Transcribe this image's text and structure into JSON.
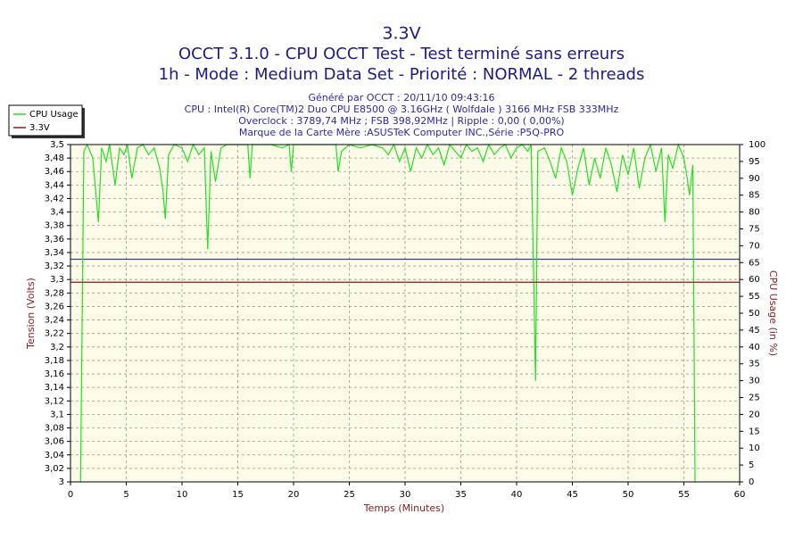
{
  "chart_data": {
    "type": "line",
    "title": "3.3V",
    "subtitle": [
      "OCCT 3.1.0 - CPU OCCT Test - Test terminé sans erreurs",
      "1h - Mode : Medium Data Set - Priorité : NORMAL - 2 threads"
    ],
    "info": [
      "Généré par OCCT : 20/11/10 09:43:16",
      "CPU : Intel(R) Core(TM)2 Duo CPU E8500 @ 3.16GHz ( Wolfdale ) 3166 MHz FSB 333MHz",
      "Overclock : 3789,74 MHz ; FSB 398,92MHz | Ripple : 0,00 ( 0,00%)",
      "Marque de la Carte Mère :ASUSTeK Computer INC.,Série :P5Q-PRO"
    ],
    "xlabel": "Temps (Minutes)",
    "ylabel": "Tension (Volts)",
    "y2label": "CPU Usage (in %)",
    "xlim": [
      0,
      60
    ],
    "xticks": [
      0,
      5,
      10,
      15,
      20,
      25,
      30,
      35,
      40,
      45,
      50,
      55,
      60
    ],
    "ylim": [
      3,
      3.5
    ],
    "yticks": [
      3,
      {
        "value": 3.02,
        "label": "3,02"
      },
      {
        "value": 3.04,
        "label": "3,04"
      },
      {
        "value": 3.06,
        "label": "3,06"
      },
      {
        "value": 3.08,
        "label": "3,08"
      },
      {
        "value": 3.1,
        "label": "3,1"
      },
      {
        "value": 3.12,
        "label": "3,12"
      },
      {
        "value": 3.14,
        "label": "3,14"
      },
      {
        "value": 3.16,
        "label": "3,16"
      },
      {
        "value": 3.18,
        "label": "3,18"
      },
      {
        "value": 3.2,
        "label": "3,2"
      },
      {
        "value": 3.22,
        "label": "3,22"
      },
      {
        "value": 3.24,
        "label": "3,24"
      },
      {
        "value": 3.26,
        "label": "3,26"
      },
      {
        "value": 3.28,
        "label": "3,28"
      },
      {
        "value": 3.3,
        "label": "3,3"
      },
      {
        "value": 3.32,
        "label": "3,32"
      },
      {
        "value": 3.34,
        "label": "3,34"
      },
      {
        "value": 3.36,
        "label": "3,36"
      },
      {
        "value": 3.38,
        "label": "3,38"
      },
      {
        "value": 3.4,
        "label": "3,4"
      },
      {
        "value": 3.42,
        "label": "3,42"
      },
      {
        "value": 3.44,
        "label": "3,44"
      },
      {
        "value": 3.46,
        "label": "3,46"
      },
      {
        "value": 3.48,
        "label": "3,48"
      },
      {
        "value": 3.5,
        "label": "3,5"
      }
    ],
    "y2lim": [
      0,
      100
    ],
    "y2ticks": [
      0,
      5,
      10,
      15,
      20,
      25,
      30,
      35,
      40,
      45,
      50,
      55,
      60,
      65,
      70,
      75,
      80,
      85,
      90,
      95,
      100
    ],
    "grid": true,
    "legend": "top-left",
    "reference_lines": [
      {
        "value": 3.33,
        "color": "#3a3a9a"
      }
    ],
    "series": [
      {
        "name": "CPU Usage",
        "color": "#22e022",
        "axis": "y2",
        "x": [
          0.9,
          1.2,
          1.5,
          2,
          2.5,
          2.8,
          3.2,
          3.5,
          4,
          4.4,
          4.8,
          5.1,
          5.5,
          6,
          6.5,
          7,
          7.5,
          8,
          8.3,
          8.5,
          8.8,
          9.3,
          10,
          10.5,
          11,
          11.5,
          12,
          12.3,
          12.6,
          13,
          13.5,
          14,
          15,
          15.9,
          16.1,
          16.3,
          17,
          18,
          19,
          19.6,
          19.8,
          20,
          21,
          22,
          23,
          23.8,
          24,
          24.3,
          25,
          26,
          27,
          28,
          28.5,
          29,
          29.5,
          30,
          30.5,
          31,
          31.5,
          32,
          32.5,
          33,
          33.5,
          34,
          34.5,
          35,
          35.5,
          36,
          36.5,
          37,
          37.5,
          38,
          38.5,
          39,
          39.5,
          40,
          40.5,
          41,
          41.3,
          41.5,
          41.7,
          41.9,
          42.5,
          43,
          43.5,
          44,
          44.5,
          45,
          45.5,
          46,
          46.5,
          47,
          47.5,
          48,
          48.5,
          49,
          49.5,
          50,
          50.5,
          51,
          51.5,
          52,
          52.5,
          53,
          53.3,
          53.6,
          54,
          54.5,
          55,
          55.3,
          55.5,
          55.8,
          56
        ],
        "values": [
          0,
          98,
          100,
          96,
          77,
          99,
          95,
          100,
          88,
          99,
          97,
          100,
          90,
          99,
          100,
          97,
          99,
          93,
          86,
          78,
          97,
          100,
          99,
          95,
          100,
          97,
          99,
          69,
          98,
          89,
          99,
          100,
          100,
          100,
          90,
          100,
          100,
          100,
          99,
          100,
          92,
          100,
          100,
          100,
          100,
          100,
          92,
          98,
          100,
          99,
          100,
          99,
          97,
          100,
          95,
          99,
          92,
          99,
          96,
          100,
          97,
          99,
          94,
          100,
          98,
          96,
          100,
          98,
          99,
          95,
          100,
          97,
          99,
          100,
          96,
          99,
          100,
          98,
          100,
          66,
          30,
          98,
          99,
          95,
          90,
          99,
          95,
          85,
          93,
          99,
          88,
          96,
          90,
          99,
          94,
          86,
          97,
          91,
          99,
          87,
          96,
          100,
          92,
          99,
          77,
          97,
          93,
          100,
          96,
          90,
          85,
          94,
          0
        ]
      },
      {
        "name": "3.3V",
        "color": "#8b1a1a",
        "axis": "y",
        "x": [
          0,
          60
        ],
        "values": [
          3.296,
          3.296
        ]
      }
    ]
  }
}
